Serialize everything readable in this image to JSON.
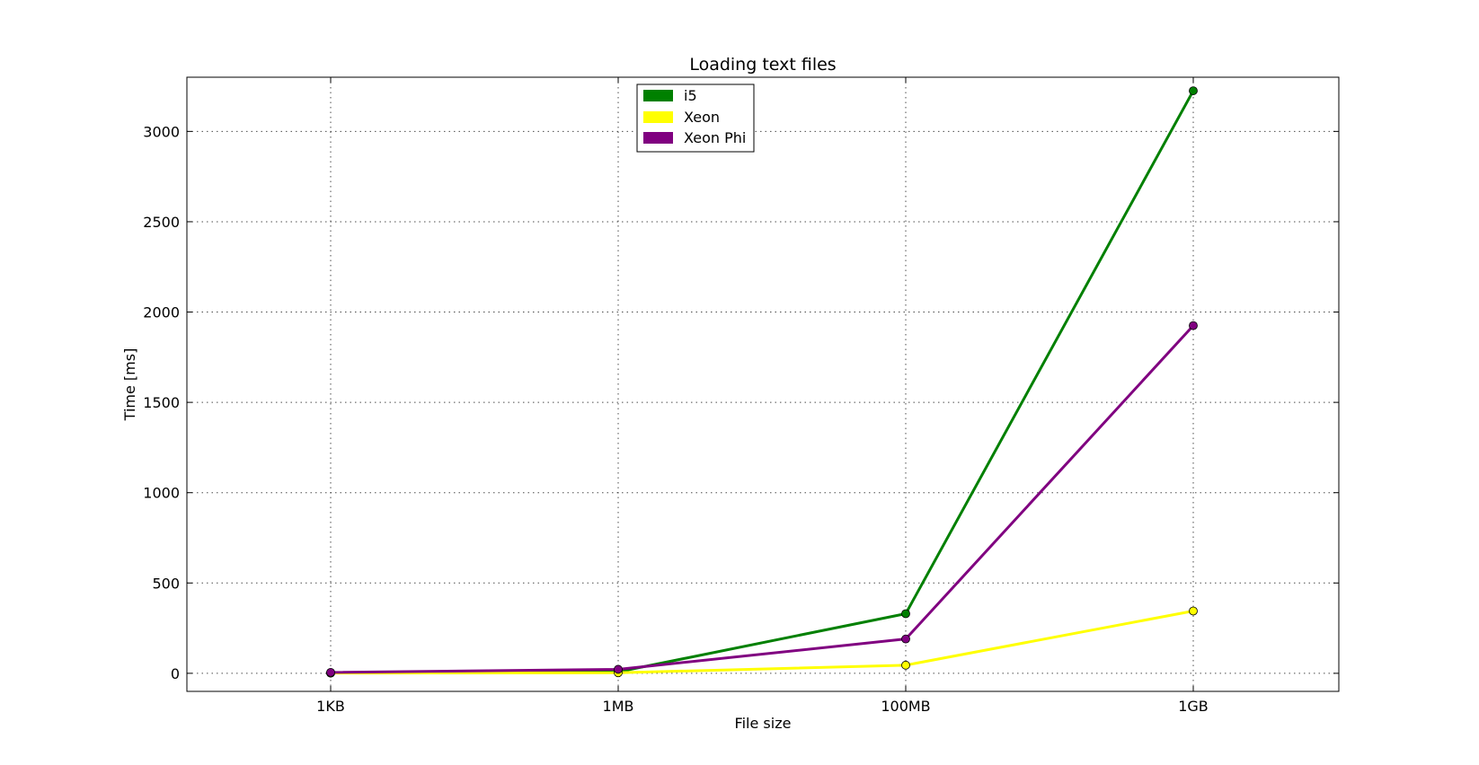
{
  "chart_data": {
    "type": "line",
    "title": "Loading text files",
    "xlabel": "File size",
    "ylabel": "Time [ms]",
    "categories": [
      "1KB",
      "1MB",
      "100MB",
      "1GB"
    ],
    "ylim": [
      -100,
      3300
    ],
    "yticks": [
      0,
      500,
      1000,
      1500,
      2000,
      2500,
      3000
    ],
    "grid": true,
    "legend_position": "top-center",
    "series": [
      {
        "name": "i5",
        "color": "#008000",
        "values": [
          2,
          8,
          330,
          3225
        ]
      },
      {
        "name": "Xeon",
        "color": "#ffff00",
        "values": [
          1,
          3,
          45,
          345
        ]
      },
      {
        "name": "Xeon Phi",
        "color": "#800080",
        "values": [
          5,
          22,
          190,
          1925
        ]
      }
    ]
  }
}
